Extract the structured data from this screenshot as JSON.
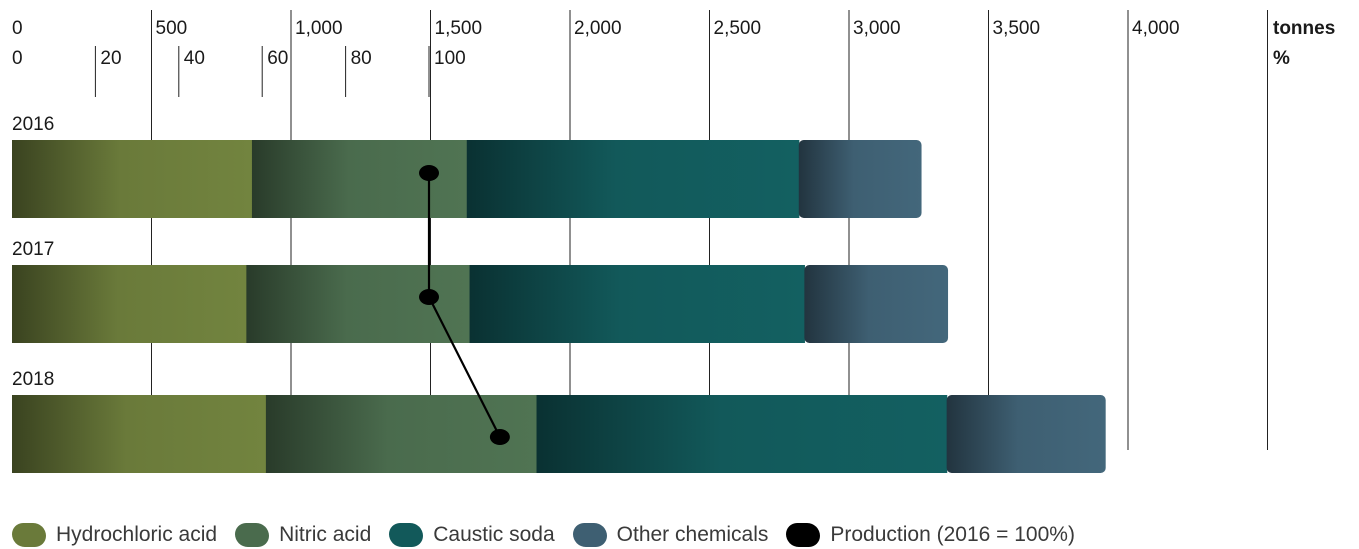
{
  "chart_data": {
    "type": "bar",
    "orientation": "horizontal",
    "stacked": true,
    "categories": [
      "2016",
      "2017",
      "2018"
    ],
    "series": [
      {
        "name": "Hydrochloric acid",
        "color": "#6a7a3a",
        "values": [
          860,
          840,
          910
        ]
      },
      {
        "name": "Nitric acid",
        "color": "#4a6b4d",
        "values": [
          770,
          800,
          970
        ]
      },
      {
        "name": "Caustic soda",
        "color": "#12595a",
        "values": [
          1190,
          1200,
          1470
        ]
      },
      {
        "name": "Other chemicals",
        "color": "#3e5f72",
        "values": [
          440,
          515,
          570
        ]
      }
    ],
    "production": {
      "name": "Production (2016 = 100%)",
      "color": "#000000",
      "values": [
        100,
        100,
        117
      ]
    },
    "axis_tonnes": {
      "unit": "tonnes",
      "min": 0,
      "max": 4500,
      "ticks": [
        "0",
        "500",
        "1,000",
        "1,500",
        "2,000",
        "2,500",
        "3,000",
        "3,500",
        "4,000"
      ]
    },
    "axis_percent": {
      "unit": "%",
      "min": 0,
      "max": 135,
      "ticks": [
        "0",
        "20",
        "40",
        "60",
        "80",
        "100"
      ]
    },
    "legend_position": "bottom"
  }
}
